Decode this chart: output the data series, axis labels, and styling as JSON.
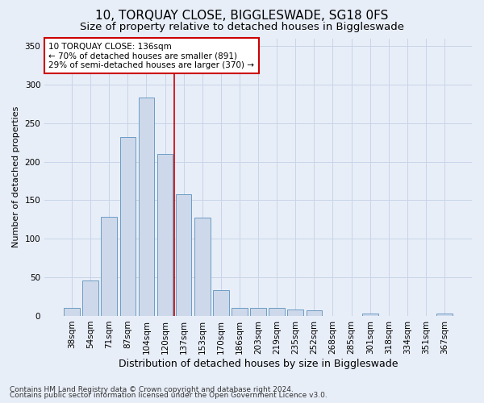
{
  "title": "10, TORQUAY CLOSE, BIGGLESWADE, SG18 0FS",
  "subtitle": "Size of property relative to detached houses in Biggleswade",
  "xlabel": "Distribution of detached houses by size in Biggleswade",
  "ylabel": "Number of detached properties",
  "categories": [
    "38sqm",
    "54sqm",
    "71sqm",
    "87sqm",
    "104sqm",
    "120sqm",
    "137sqm",
    "153sqm",
    "170sqm",
    "186sqm",
    "203sqm",
    "219sqm",
    "235sqm",
    "252sqm",
    "268sqm",
    "285sqm",
    "301sqm",
    "318sqm",
    "334sqm",
    "351sqm",
    "367sqm"
  ],
  "values": [
    10,
    46,
    128,
    232,
    283,
    210,
    158,
    127,
    33,
    10,
    10,
    10,
    8,
    7,
    0,
    0,
    3,
    0,
    0,
    0,
    3
  ],
  "bar_color": "#cdd9ea",
  "bar_edge_color": "#6b9cc4",
  "grid_color": "#c8d4e8",
  "background_color": "#e8eef8",
  "vline_color": "#cc0000",
  "annotation_text": "10 TORQUAY CLOSE: 136sqm\n← 70% of detached houses are smaller (891)\n29% of semi-detached houses are larger (370) →",
  "annotation_box_color": "#ffffff",
  "annotation_box_edge": "#cc0000",
  "ylim": [
    0,
    360
  ],
  "yticks": [
    0,
    50,
    100,
    150,
    200,
    250,
    300,
    350
  ],
  "footnote1": "Contains HM Land Registry data © Crown copyright and database right 2024.",
  "footnote2": "Contains public sector information licensed under the Open Government Licence v3.0.",
  "title_fontsize": 11,
  "subtitle_fontsize": 9.5,
  "xlabel_fontsize": 9,
  "ylabel_fontsize": 8,
  "tick_fontsize": 7.5,
  "annot_fontsize": 7.5,
  "footnote_fontsize": 6.5,
  "vline_pos": 5.5
}
